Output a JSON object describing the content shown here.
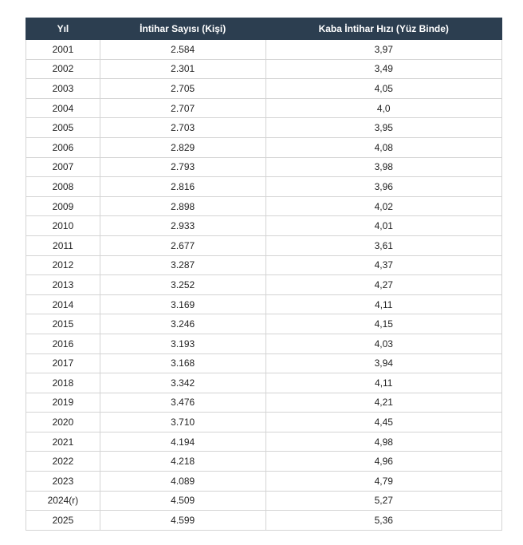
{
  "table": {
    "header": [
      "Yıl",
      "İntihar Sayısı (Kişi)",
      "Kaba İntihar Hızı (Yüz Binde)"
    ],
    "rows": [
      [
        "2001",
        "2.584",
        "3,97"
      ],
      [
        "2002",
        "2.301",
        "3,49"
      ],
      [
        "2003",
        "2.705",
        "4,05"
      ],
      [
        "2004",
        "2.707",
        "4,0"
      ],
      [
        "2005",
        "2.703",
        "3,95"
      ],
      [
        "2006",
        "2.829",
        "4,08"
      ],
      [
        "2007",
        "2.793",
        "3,98"
      ],
      [
        "2008",
        "2.816",
        "3,96"
      ],
      [
        "2009",
        "2.898",
        "4,02"
      ],
      [
        "2010",
        "2.933",
        "4,01"
      ],
      [
        "2011",
        "2.677",
        "3,61"
      ],
      [
        "2012",
        "3.287",
        "4,37"
      ],
      [
        "2013",
        "3.252",
        "4,27"
      ],
      [
        "2014",
        "3.169",
        "4,11"
      ],
      [
        "2015",
        "3.246",
        "4,15"
      ],
      [
        "2016",
        "3.193",
        "4,03"
      ],
      [
        "2017",
        "3.168",
        "3,94"
      ],
      [
        "2018",
        "3.342",
        "4,11"
      ],
      [
        "2019",
        "3.476",
        "4,21"
      ],
      [
        "2020",
        "3.710",
        "4,45"
      ],
      [
        "2021",
        "4.194",
        "4,98"
      ],
      [
        "2022",
        "4.218",
        "4,96"
      ],
      [
        "2023",
        "4.089",
        "4,79"
      ],
      [
        "2024(r)",
        "4.509",
        "5,27"
      ],
      [
        "2025",
        "4.599",
        "5,36"
      ]
    ]
  }
}
